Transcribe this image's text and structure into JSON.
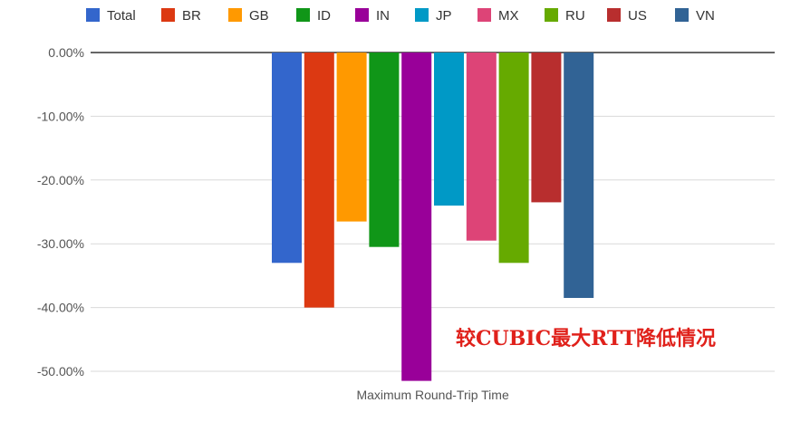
{
  "chart_data": {
    "type": "bar",
    "categories": [
      "Maximum Round-Trip Time"
    ],
    "series": [
      {
        "name": "Total",
        "values": [
          -33.0
        ],
        "color": "#3366cc"
      },
      {
        "name": "BR",
        "values": [
          -40.0
        ],
        "color": "#dc3912"
      },
      {
        "name": "GB",
        "values": [
          -26.5
        ],
        "color": "#ff9900"
      },
      {
        "name": "ID",
        "values": [
          -30.5
        ],
        "color": "#109618"
      },
      {
        "name": "IN",
        "values": [
          -51.5
        ],
        "color": "#990099"
      },
      {
        "name": "JP",
        "values": [
          -24.0
        ],
        "color": "#0099c6"
      },
      {
        "name": "MX",
        "values": [
          -29.5
        ],
        "color": "#dd4477"
      },
      {
        "name": "RU",
        "values": [
          -33.0
        ],
        "color": "#66aa00"
      },
      {
        "name": "US",
        "values": [
          -23.5
        ],
        "color": "#b82e2e"
      },
      {
        "name": "VN",
        "values": [
          -38.5
        ],
        "color": "#316395"
      }
    ],
    "yticks": [
      "0.00%",
      "-10.00%",
      "-20.00%",
      "-30.00%",
      "-40.00%",
      "-50.00%"
    ],
    "ylim": [
      -52,
      0
    ],
    "grid": true,
    "legend": "top",
    "annotation": "较CUBIC最大RTT降低情况",
    "xlabel": "",
    "ylabel": ""
  }
}
